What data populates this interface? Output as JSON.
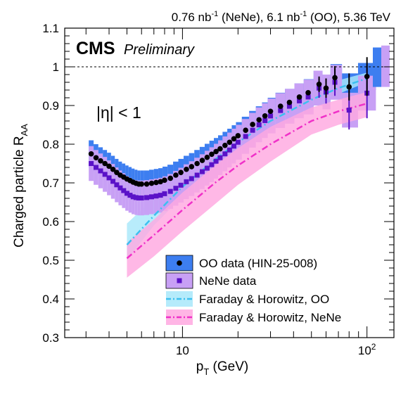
{
  "header": {
    "lumi_a": "0.76 nb",
    "lumi_a_exp": "-1",
    "lumi_a_sys": " (NeNe), 6.1 nb",
    "lumi_b_exp": "-1",
    "lumi_b_sys": " (OO), 5.36 TeV"
  },
  "branding": {
    "cms": "CMS",
    "preliminary": "Preliminary"
  },
  "annotation": {
    "eta_cut": "|η| < 1"
  },
  "chart_data": {
    "type": "scatter",
    "xscale": "log",
    "xlim": [
      2.3,
      140
    ],
    "ylim": [
      0.3,
      1.1
    ],
    "xlabel_main": "p",
    "xlabel_sub": "T",
    "xlabel_unit": " (GeV)",
    "ylabel_main": "Charged particle R",
    "ylabel_sub": "AA",
    "x_ticks": [
      {
        "value": 10,
        "base": "10",
        "exp": ""
      },
      {
        "value": 100,
        "base": "10",
        "exp": "2"
      }
    ],
    "y_ticks": [
      "0.3",
      "0.4",
      "0.5",
      "0.6",
      "0.7",
      "0.8",
      "0.9",
      "1",
      "1.1"
    ],
    "reference_line": 1.0,
    "legend_position": "bottom-right",
    "series": [
      {
        "name": "OO data (HIN-25-008)",
        "marker": "circle",
        "color": "#000000",
        "band_color": "#3d7ef0",
        "x": [
          3.2,
          3.4,
          3.6,
          3.8,
          4.0,
          4.2,
          4.4,
          4.6,
          4.8,
          5.0,
          5.2,
          5.4,
          5.6,
          5.8,
          6.0,
          6.4,
          6.8,
          7.2,
          7.6,
          8.0,
          8.6,
          9.2,
          9.8,
          10.5,
          11.2,
          12.0,
          12.8,
          13.6,
          14.4,
          15.2,
          16.0,
          17.0,
          18.0,
          19.0,
          20.0,
          22.0,
          24.0,
          26.0,
          28.0,
          30.0,
          34.0,
          38.0,
          43.0,
          48.0,
          55.0,
          60.0,
          67.0,
          80.0,
          100.0
        ],
        "y": [
          0.775,
          0.765,
          0.757,
          0.75,
          0.743,
          0.735,
          0.727,
          0.72,
          0.715,
          0.71,
          0.706,
          0.702,
          0.699,
          0.697,
          0.697,
          0.697,
          0.699,
          0.701,
          0.703,
          0.707,
          0.712,
          0.72,
          0.727,
          0.735,
          0.742,
          0.75,
          0.758,
          0.766,
          0.774,
          0.781,
          0.788,
          0.797,
          0.805,
          0.814,
          0.822,
          0.836,
          0.851,
          0.863,
          0.873,
          0.885,
          0.898,
          0.908,
          0.922,
          0.933,
          0.955,
          0.945,
          0.972,
          0.948,
          0.975
        ],
        "yerr": [
          0,
          0,
          0,
          0,
          0,
          0,
          0,
          0,
          0,
          0,
          0,
          0,
          0,
          0,
          0,
          0,
          0,
          0,
          0,
          0,
          0,
          0,
          0,
          0,
          0,
          0,
          0,
          0,
          0,
          0,
          0,
          0,
          0,
          0,
          0,
          0,
          0,
          0,
          0,
          0,
          0,
          0,
          0,
          0,
          0.02,
          0.025,
          0.03,
          0.035,
          0.05
        ],
        "sys": 0.035,
        "norm_box": [
          0.948,
          1.05
        ]
      },
      {
        "name": "NeNe data",
        "marker": "square",
        "color": "#5a12c8",
        "band_color": "#c8a0f5",
        "x": [
          3.2,
          3.4,
          3.6,
          3.8,
          4.0,
          4.2,
          4.4,
          4.6,
          4.8,
          5.0,
          5.2,
          5.4,
          5.6,
          5.8,
          6.0,
          6.4,
          6.8,
          7.2,
          7.6,
          8.0,
          8.6,
          9.2,
          9.8,
          10.5,
          11.2,
          12.0,
          12.8,
          13.6,
          14.4,
          15.2,
          16.0,
          17.0,
          18.0,
          19.0,
          20.0,
          22.0,
          24.0,
          26.0,
          28.0,
          30.0,
          34.0,
          38.0,
          43.0,
          48.0,
          55.0,
          60.0,
          67.0,
          80.0,
          100.0
        ],
        "y": [
          0.75,
          0.74,
          0.731,
          0.722,
          0.713,
          0.704,
          0.695,
          0.687,
          0.68,
          0.673,
          0.668,
          0.664,
          0.662,
          0.661,
          0.661,
          0.662,
          0.664,
          0.666,
          0.668,
          0.672,
          0.678,
          0.686,
          0.694,
          0.703,
          0.711,
          0.72,
          0.729,
          0.738,
          0.747,
          0.756,
          0.765,
          0.775,
          0.785,
          0.795,
          0.805,
          0.82,
          0.836,
          0.85,
          0.861,
          0.873,
          0.887,
          0.898,
          0.912,
          0.922,
          0.945,
          0.935,
          0.96,
          0.888,
          0.932
        ],
        "yerr": [
          0,
          0,
          0,
          0,
          0,
          0,
          0,
          0,
          0,
          0,
          0,
          0,
          0,
          0,
          0,
          0,
          0,
          0,
          0,
          0,
          0,
          0,
          0,
          0,
          0,
          0,
          0,
          0,
          0,
          0,
          0,
          0,
          0,
          0,
          0,
          0,
          0,
          0,
          0,
          0,
          0,
          0,
          0,
          0,
          0.025,
          0.03,
          0.035,
          0.05,
          0.065
        ],
        "sys": 0.045,
        "norm_box": [
          0.948,
          1.055
        ]
      },
      {
        "name": "Faraday & Horowitz, OO",
        "style": "dash-dot",
        "color": "#3cc0f0",
        "band_color": "#a8e8fa",
        "x": [
          5,
          7,
          10,
          15,
          20,
          30,
          50,
          70,
          100
        ],
        "lo": [
          0.5,
          0.59,
          0.665,
          0.74,
          0.785,
          0.84,
          0.9,
          0.93,
          0.96
        ],
        "mid": [
          0.54,
          0.615,
          0.69,
          0.76,
          0.805,
          0.86,
          0.915,
          0.945,
          0.97
        ],
        "hi": [
          0.595,
          0.66,
          0.73,
          0.79,
          0.83,
          0.88,
          0.935,
          0.965,
          0.985
        ]
      },
      {
        "name": "Faraday & Horowitz, NeNe",
        "style": "dash-dot",
        "color": "#f030c8",
        "band_color": "#ffa8e0",
        "x": [
          5,
          7,
          10,
          15,
          20,
          30,
          50,
          70,
          100
        ],
        "lo": [
          0.455,
          0.51,
          0.575,
          0.645,
          0.695,
          0.755,
          0.825,
          0.85,
          0.87
        ],
        "mid": [
          0.505,
          0.565,
          0.63,
          0.7,
          0.745,
          0.8,
          0.86,
          0.885,
          0.905
        ],
        "hi": [
          0.545,
          0.605,
          0.675,
          0.745,
          0.79,
          0.845,
          0.895,
          0.915,
          0.935
        ]
      }
    ]
  }
}
